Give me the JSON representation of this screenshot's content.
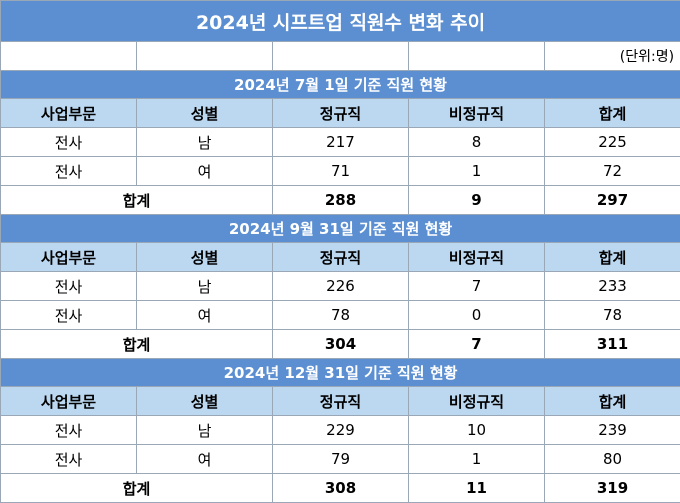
{
  "title": "2024년 시프트업 직원수 변화 추이",
  "unit": "(단위:명)",
  "columns": [
    "사업부문",
    "성별",
    "정규직",
    "비정규직",
    "합계"
  ],
  "sections": [
    {
      "heading": "2024년 7월 1일 기준 직원 현황",
      "rows": [
        {
          "division": "전사",
          "gender": "남",
          "regular": "217",
          "nonregular": "8",
          "total": "225"
        },
        {
          "division": "전사",
          "gender": "여",
          "regular": "71",
          "nonregular": "1",
          "total": "72"
        }
      ],
      "sum": {
        "label": "합계",
        "regular": "288",
        "nonregular": "9",
        "total": "297"
      }
    },
    {
      "heading": "2024년 9월 31일 기준 직원 현황",
      "rows": [
        {
          "division": "전사",
          "gender": "남",
          "regular": "226",
          "nonregular": "7",
          "total": "233"
        },
        {
          "division": "전사",
          "gender": "여",
          "regular": "78",
          "nonregular": "0",
          "total": "78"
        }
      ],
      "sum": {
        "label": "합계",
        "regular": "304",
        "nonregular": "7",
        "total": "311"
      }
    },
    {
      "heading": "2024년 12월 31일 기준 직원 현황",
      "rows": [
        {
          "division": "전사",
          "gender": "남",
          "regular": "229",
          "nonregular": "10",
          "total": "239"
        },
        {
          "division": "전사",
          "gender": "여",
          "regular": "79",
          "nonregular": "1",
          "total": "80"
        }
      ],
      "sum": {
        "label": "합계",
        "regular": "308",
        "nonregular": "11",
        "total": "319"
      }
    }
  ]
}
